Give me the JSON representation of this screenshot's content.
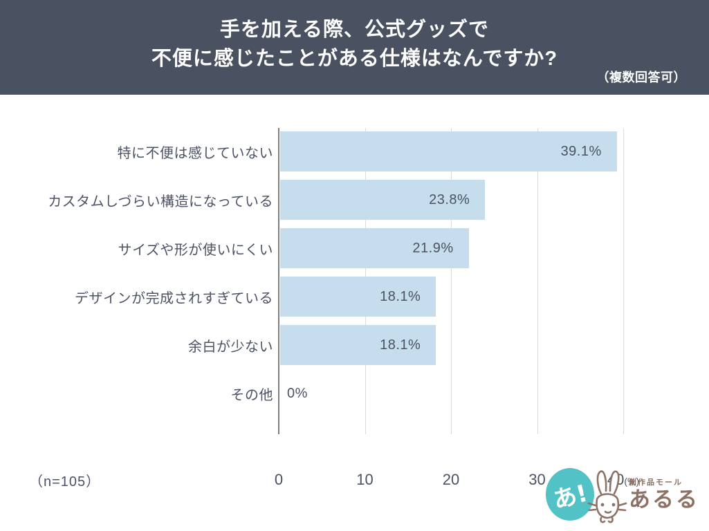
{
  "header": {
    "title_line1": "手を加える際、公式グッズで",
    "title_line2": "不便に感じたことがある仕様はなんですか?",
    "note": "（複数回答可）"
  },
  "chart_data": {
    "type": "bar",
    "orientation": "horizontal",
    "title": "手を加える際、公式グッズで不便に感じたことがある仕様はなんですか?（複数回答可）",
    "categories": [
      "特に不便は感じていない",
      "カスタムしづらい構造になっている",
      "サイズや形が使いにくい",
      "デザインが完成されすぎている",
      "余白が少ない",
      "その他"
    ],
    "values": [
      39.1,
      23.8,
      21.9,
      18.1,
      18.1,
      0
    ],
    "value_labels": [
      "39.1%",
      "23.8%",
      "21.9%",
      "18.1%",
      "18.1%",
      "0%"
    ],
    "xlabel": "",
    "ylabel": "",
    "xlim": [
      0,
      40
    ],
    "x_ticks": [
      0,
      10,
      20,
      30,
      40
    ],
    "x_unit": "(%)",
    "grid": true,
    "legend": false,
    "bar_color": "#c5ddec",
    "grid_color": "#dcdcdc",
    "axis_color": "#7e7e7e",
    "text_color": "#4a5263"
  },
  "footer": {
    "sample_size": "（n=105）"
  },
  "logo": {
    "badge_text": "あ!",
    "tagline": "創作品モール",
    "brand": "あるる",
    "teal": "#52c2c6",
    "brown": "#8d7164"
  },
  "colors": {
    "header_bg": "#4a5160",
    "page_bg": "#ffffff"
  }
}
